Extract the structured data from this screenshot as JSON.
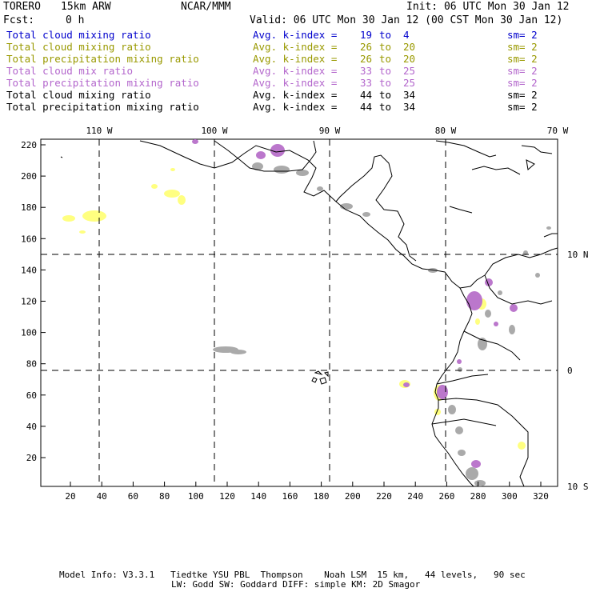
{
  "header": {
    "model": "TORERO",
    "resolution": "15km ARW",
    "org": "NCAR/MMM",
    "init": "Init: 06 UTC Mon 30 Jan 12",
    "fcst_label": "Fcst:",
    "fcst_value": "0 h",
    "valid": "Valid: 06 UTC Mon 30 Jan 12 (00 CST Mon 30 Jan 12)"
  },
  "legend": [
    {
      "field": "Total cloud mixing ratio",
      "kidx": "Avg. k-index =",
      "from": "19",
      "to": "4",
      "sm": "sm= 2",
      "color": "#0000cc"
    },
    {
      "field": "Total cloud mixing ratio",
      "kidx": "Avg. k-index =",
      "from": "26",
      "to": "20",
      "sm": "sm= 2",
      "color": "#999900"
    },
    {
      "field": "Total precipitation mixing ratio",
      "kidx": "Avg. k-index =",
      "from": "26",
      "to": "20",
      "sm": "sm= 2",
      "color": "#999900"
    },
    {
      "field": "Total cloud mix ratio",
      "kidx": "Avg. k-index =",
      "from": "33",
      "to": "25",
      "sm": "sm= 2",
      "color": "#b366cc"
    },
    {
      "field": "Total precipitation mixing ratio",
      "kidx": "Avg. k-index =",
      "from": "33",
      "to": "25",
      "sm": "sm= 2",
      "color": "#b366cc"
    },
    {
      "field": "Total cloud mixing ratio",
      "kidx": "Avg. k-index =",
      "from": "44",
      "to": "34",
      "sm": "sm= 2",
      "color": "#000000"
    },
    {
      "field": "Total precipitation mixing ratio",
      "kidx": "Avg. k-index =",
      "from": "44",
      "to": "34",
      "sm": "sm= 2",
      "color": "#000000"
    }
  ],
  "legend_to_word": "to",
  "map": {
    "lon_labels": [
      "110 W",
      "100 W",
      "90 W",
      "80 W",
      "70 W"
    ],
    "lat_labels": [
      "10 N",
      "0",
      "10 S"
    ],
    "y_ticks": [
      "220",
      "200",
      "180",
      "160",
      "140",
      "120",
      "100",
      "80",
      "60",
      "40",
      "20"
    ],
    "x_ticks": [
      "20",
      "40",
      "60",
      "80",
      "100",
      "120",
      "140",
      "160",
      "180",
      "200",
      "220",
      "240",
      "260",
      "280",
      "300",
      "320"
    ],
    "colors": {
      "yellow": "#ffff80",
      "purple": "#bb77cc",
      "gray": "#aaaaaa",
      "coast": "#000000"
    }
  },
  "footer": {
    "line1": "Model Info: V3.3.1   Tiedtke YSU PBL  Thompson    Noah LSM  15 km,   44 levels,   90 sec",
    "line2": "LW: Godd SW: Goddard DIFF: simple KM: 2D Smagor"
  }
}
